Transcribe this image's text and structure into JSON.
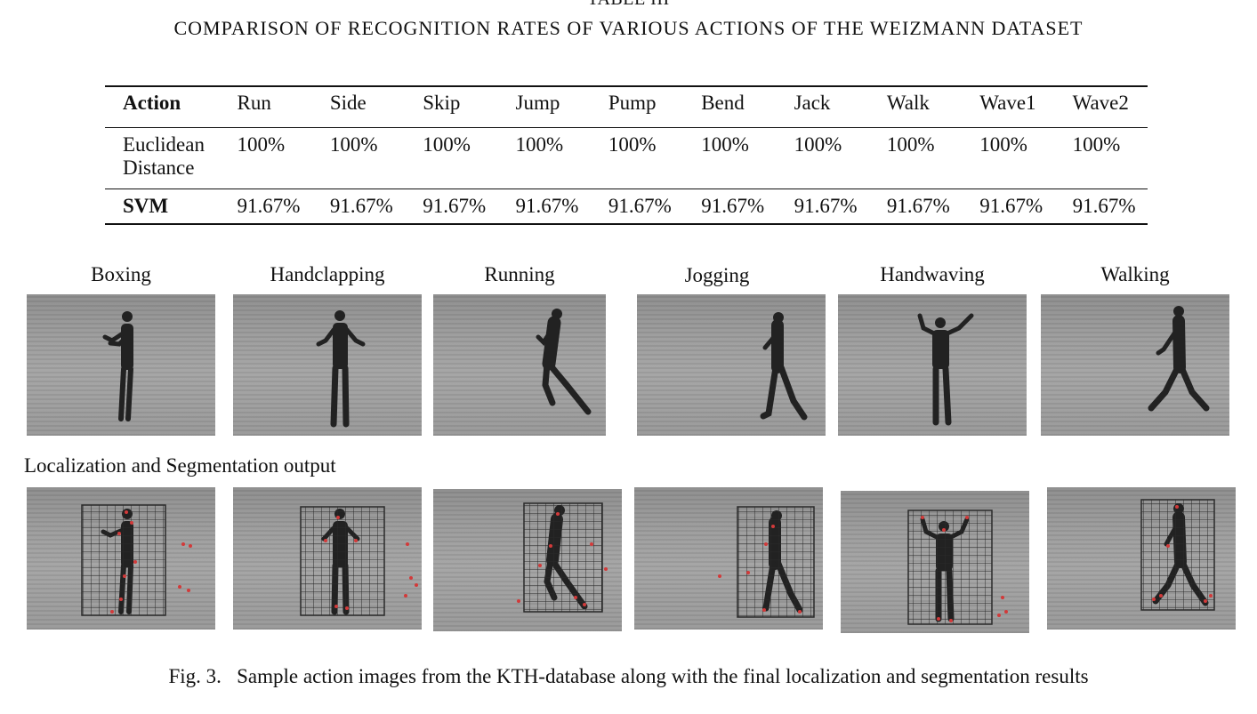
{
  "table": {
    "label": "TABLE III",
    "title": "COMPARISON OF RECOGNITION RATES OF VARIOUS ACTIONS OF THE WEIZMANN DATASET",
    "columns": [
      "Action",
      "Run",
      "Side",
      "Skip",
      "Jump",
      "Pump",
      "Bend",
      "Jack",
      "Walk",
      "Wave1",
      "Wave2"
    ],
    "rows": [
      {
        "name": [
          "Euclidean",
          "Distance"
        ],
        "values": [
          "100%",
          "100%",
          "100%",
          "100%",
          "100%",
          "100%",
          "100%",
          "100%",
          "100%",
          "100%"
        ]
      },
      {
        "name": [
          "SVM"
        ],
        "values": [
          "91.67%",
          "91.67%",
          "91.67%",
          "91.67%",
          "91.67%",
          "91.67%",
          "91.67%",
          "91.67%",
          "91.67%",
          "91.67%"
        ]
      }
    ]
  },
  "actions": [
    "Boxing",
    "Handclapping",
    "Running",
    "Jogging",
    "Handwaving",
    "Walking"
  ],
  "section_label": "Localization and Segmentation output",
  "caption": "Fig. 3.   Sample action images from the KTH-database along with the final localization and segmentation results",
  "colors": {
    "ground": "#9a9a9a",
    "figure": "#222222",
    "grid": "#2a2a2a",
    "points": "#d23a3a"
  }
}
